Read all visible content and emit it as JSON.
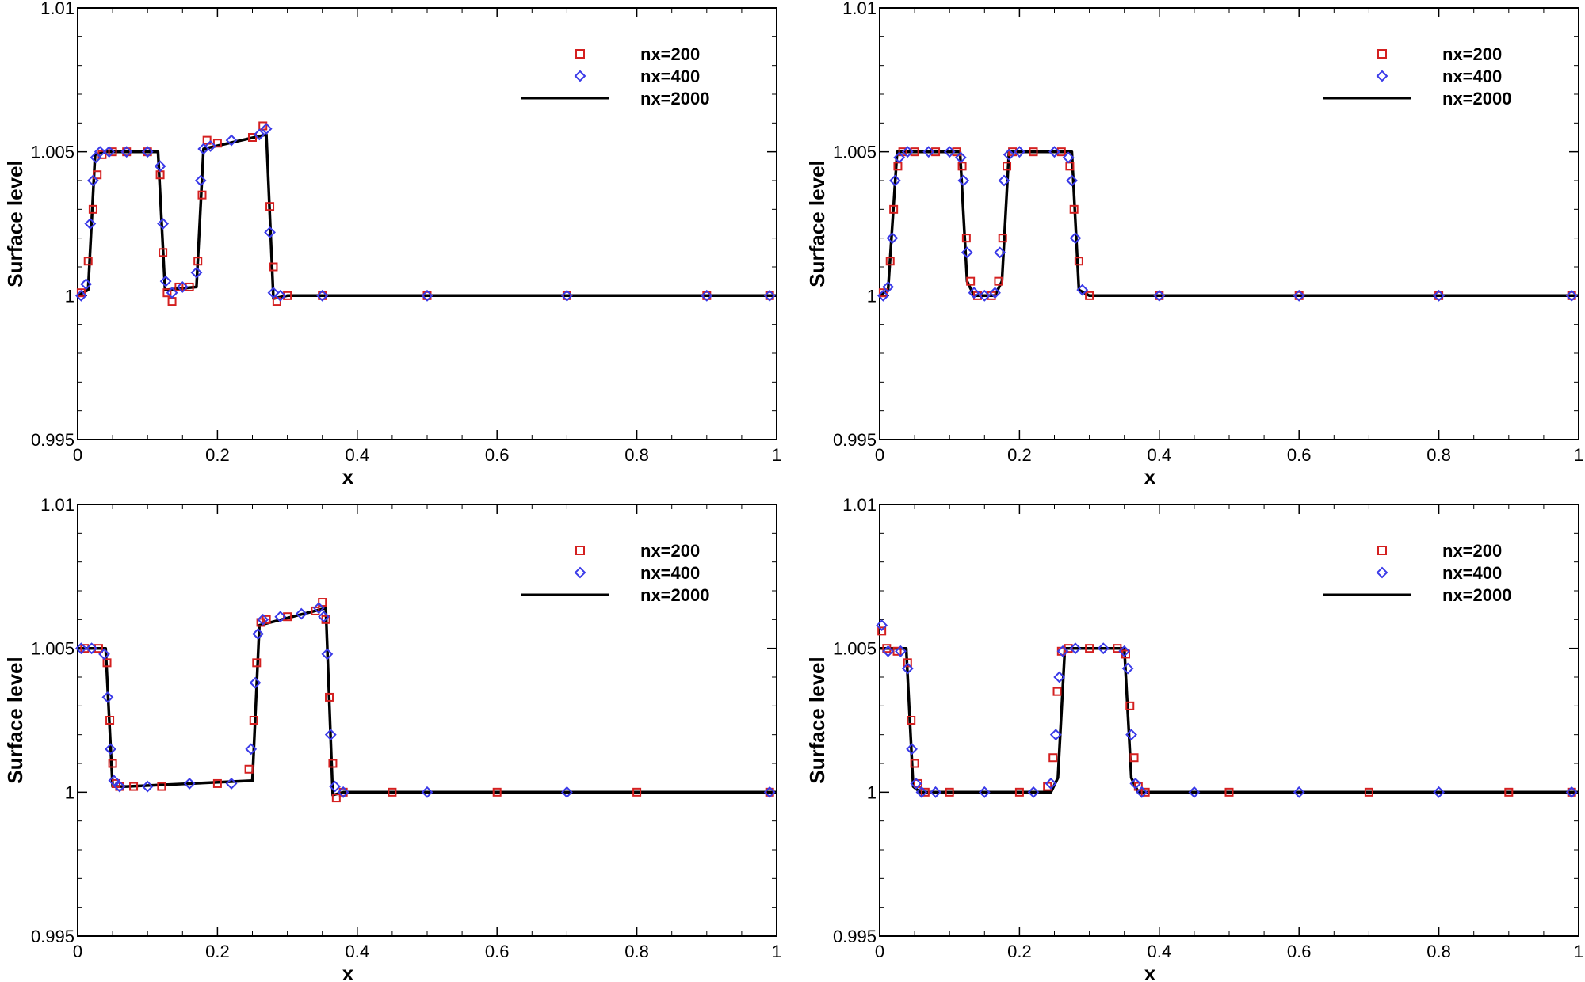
{
  "colors": {
    "nx200": "#d42020",
    "nx400": "#3a3ae8",
    "nx2000": "#000000",
    "axis": "#000000",
    "background": "#ffffff"
  },
  "chart_data": [
    {
      "type": "line",
      "xlabel": "x",
      "ylabel": "Surface level",
      "xlim": [
        0,
        1
      ],
      "ylim": [
        0.995,
        1.01
      ],
      "xticks": [
        "0",
        "0.2",
        "0.4",
        "0.6",
        "0.8",
        "1"
      ],
      "yticks": [
        "0.995",
        "1",
        "1.005",
        "1.01"
      ],
      "legend_position": "top-right",
      "legend": [
        "nx=200",
        "nx=400",
        "nx=2000"
      ],
      "profile": [
        [
          0,
          1.0
        ],
        [
          0.015,
          1.0002
        ],
        [
          0.025,
          1.0049
        ],
        [
          0.04,
          1.005
        ],
        [
          0.115,
          1.005
        ],
        [
          0.125,
          1.0002
        ],
        [
          0.17,
          1.0003
        ],
        [
          0.18,
          1.0051
        ],
        [
          0.27,
          1.0056
        ],
        [
          0.28,
          0.9999
        ],
        [
          0.3,
          1.0
        ],
        [
          1,
          1.0
        ]
      ],
      "series": [
        {
          "name": "nx=200",
          "marker": "square",
          "x": [
            0.005,
            0.015,
            0.022,
            0.028,
            0.035,
            0.05,
            0.07,
            0.1,
            0.118,
            0.122,
            0.128,
            0.135,
            0.145,
            0.16,
            0.172,
            0.178,
            0.185,
            0.2,
            0.25,
            0.265,
            0.275,
            0.28,
            0.285,
            0.3,
            0.35,
            0.5,
            0.7,
            0.9,
            0.99
          ],
          "y": [
            1.0001,
            1.0012,
            1.003,
            1.0042,
            1.0049,
            1.005,
            1.005,
            1.005,
            1.0042,
            1.0015,
            1.0001,
            0.9998,
            1.0003,
            1.0003,
            1.0012,
            1.0035,
            1.0054,
            1.0053,
            1.0055,
            1.0059,
            1.0031,
            1.001,
            0.9998,
            1.0,
            1.0,
            1.0,
            1.0,
            1.0,
            1.0
          ]
        },
        {
          "name": "nx=400",
          "marker": "diamond",
          "x": [
            0.005,
            0.012,
            0.018,
            0.022,
            0.026,
            0.032,
            0.045,
            0.07,
            0.1,
            0.118,
            0.122,
            0.126,
            0.135,
            0.15,
            0.17,
            0.176,
            0.18,
            0.19,
            0.22,
            0.26,
            0.27,
            0.275,
            0.28,
            0.29,
            0.35,
            0.5,
            0.7,
            0.9,
            0.99
          ],
          "y": [
            1.0,
            1.0004,
            1.0025,
            1.004,
            1.0048,
            1.005,
            1.005,
            1.005,
            1.005,
            1.0045,
            1.0025,
            1.0005,
            1.0001,
            1.0003,
            1.0008,
            1.004,
            1.0051,
            1.0052,
            1.0054,
            1.0056,
            1.0058,
            1.0022,
            1.0001,
            1.0,
            1.0,
            1.0,
            1.0,
            1.0,
            1.0
          ]
        }
      ]
    },
    {
      "type": "line",
      "xlabel": "x",
      "ylabel": "Surface level",
      "xlim": [
        0,
        1
      ],
      "ylim": [
        0.995,
        1.01
      ],
      "xticks": [
        "0",
        "0.2",
        "0.4",
        "0.6",
        "0.8",
        "1"
      ],
      "yticks": [
        "0.995",
        "1",
        "1.005",
        "1.01"
      ],
      "legend_position": "top-right",
      "legend": [
        "nx=200",
        "nx=400",
        "nx=2000"
      ],
      "profile": [
        [
          0,
          1.0
        ],
        [
          0.012,
          1.0002
        ],
        [
          0.025,
          1.005
        ],
        [
          0.115,
          1.005
        ],
        [
          0.125,
          1.0005
        ],
        [
          0.135,
          1.0
        ],
        [
          0.165,
          1.0
        ],
        [
          0.175,
          1.0005
        ],
        [
          0.185,
          1.005
        ],
        [
          0.275,
          1.005
        ],
        [
          0.285,
          1.0002
        ],
        [
          0.3,
          1.0
        ],
        [
          1,
          1.0
        ]
      ],
      "series": [
        {
          "name": "nx=200",
          "marker": "square",
          "x": [
            0.005,
            0.015,
            0.02,
            0.026,
            0.033,
            0.05,
            0.08,
            0.11,
            0.118,
            0.124,
            0.13,
            0.14,
            0.16,
            0.17,
            0.176,
            0.182,
            0.19,
            0.22,
            0.26,
            0.272,
            0.278,
            0.285,
            0.3,
            0.4,
            0.6,
            0.8,
            0.99
          ],
          "y": [
            1.0001,
            1.0012,
            1.003,
            1.0045,
            1.005,
            1.005,
            1.005,
            1.005,
            1.0045,
            1.002,
            1.0005,
            1.0,
            1.0,
            1.0005,
            1.002,
            1.0045,
            1.005,
            1.005,
            1.005,
            1.0045,
            1.003,
            1.0012,
            1.0,
            1.0,
            1.0,
            1.0,
            1.0
          ]
        },
        {
          "name": "nx=400",
          "marker": "diamond",
          "x": [
            0.005,
            0.012,
            0.018,
            0.022,
            0.028,
            0.04,
            0.07,
            0.1,
            0.116,
            0.12,
            0.125,
            0.135,
            0.15,
            0.165,
            0.172,
            0.178,
            0.185,
            0.2,
            0.25,
            0.27,
            0.275,
            0.28,
            0.29,
            0.4,
            0.6,
            0.8,
            0.99
          ],
          "y": [
            1.0,
            1.0003,
            1.002,
            1.004,
            1.0048,
            1.005,
            1.005,
            1.005,
            1.0048,
            1.004,
            1.0015,
            1.0001,
            1.0,
            1.0001,
            1.0015,
            1.004,
            1.0049,
            1.005,
            1.005,
            1.0048,
            1.004,
            1.002,
            1.0002,
            1.0,
            1.0,
            1.0,
            1.0
          ]
        }
      ]
    },
    {
      "type": "line",
      "xlabel": "x",
      "ylabel": "Surface level",
      "xlim": [
        0,
        1
      ],
      "ylim": [
        0.995,
        1.01
      ],
      "xticks": [
        "0",
        "0.2",
        "0.4",
        "0.6",
        "0.8",
        "1"
      ],
      "yticks": [
        "0.995",
        "1",
        "1.005",
        "1.01"
      ],
      "legend_position": "top-right",
      "legend": [
        "nx=200",
        "nx=400",
        "nx=2000"
      ],
      "profile": [
        [
          0,
          1.005
        ],
        [
          0.04,
          1.005
        ],
        [
          0.05,
          1.0002
        ],
        [
          0.07,
          1.0002
        ],
        [
          0.25,
          1.0004
        ],
        [
          0.26,
          1.0058
        ],
        [
          0.355,
          1.0064
        ],
        [
          0.365,
          0.9999
        ],
        [
          0.38,
          1.0
        ],
        [
          1,
          1.0
        ]
      ],
      "series": [
        {
          "name": "nx=200",
          "marker": "square",
          "x": [
            0.01,
            0.03,
            0.042,
            0.046,
            0.05,
            0.055,
            0.06,
            0.08,
            0.12,
            0.2,
            0.245,
            0.252,
            0.256,
            0.262,
            0.27,
            0.3,
            0.34,
            0.35,
            0.355,
            0.36,
            0.365,
            0.37,
            0.38,
            0.45,
            0.6,
            0.8,
            0.99
          ],
          "y": [
            1.005,
            1.005,
            1.0045,
            1.0025,
            1.001,
            1.0003,
            1.0002,
            1.0002,
            1.0002,
            1.0003,
            1.0008,
            1.0025,
            1.0045,
            1.0059,
            1.006,
            1.0061,
            1.0063,
            1.0066,
            1.006,
            1.0033,
            1.001,
            0.9998,
            1.0,
            1.0,
            1.0,
            1.0,
            1.0
          ]
        },
        {
          "name": "nx=400",
          "marker": "diamond",
          "x": [
            0.005,
            0.02,
            0.038,
            0.043,
            0.047,
            0.052,
            0.06,
            0.1,
            0.16,
            0.22,
            0.248,
            0.254,
            0.258,
            0.265,
            0.29,
            0.32,
            0.345,
            0.352,
            0.357,
            0.362,
            0.368,
            0.38,
            0.5,
            0.7,
            0.99
          ],
          "y": [
            1.005,
            1.005,
            1.0048,
            1.0033,
            1.0015,
            1.0004,
            1.0002,
            1.0002,
            1.0003,
            1.0003,
            1.0015,
            1.0038,
            1.0055,
            1.006,
            1.0061,
            1.0062,
            1.0064,
            1.0061,
            1.0048,
            1.002,
            1.0002,
            1.0,
            1.0,
            1.0,
            1.0
          ]
        }
      ]
    },
    {
      "type": "line",
      "xlabel": "x",
      "ylabel": "Surface level",
      "xlim": [
        0,
        1
      ],
      "ylim": [
        0.995,
        1.01
      ],
      "xticks": [
        "0",
        "0.2",
        "0.4",
        "0.6",
        "0.8",
        "1"
      ],
      "yticks": [
        "0.995",
        "1",
        "1.005",
        "1.01"
      ],
      "legend_position": "top-right",
      "legend": [
        "nx=200",
        "nx=400",
        "nx=2000"
      ],
      "profile": [
        [
          0,
          1.005
        ],
        [
          0.038,
          1.005
        ],
        [
          0.048,
          1.0002
        ],
        [
          0.058,
          1.0
        ],
        [
          0.245,
          1.0
        ],
        [
          0.255,
          1.0005
        ],
        [
          0.265,
          1.005
        ],
        [
          0.35,
          1.005
        ],
        [
          0.36,
          1.0005
        ],
        [
          0.37,
          1.0
        ],
        [
          1,
          1.0
        ]
      ],
      "series": [
        {
          "name": "nx=200",
          "marker": "square",
          "x": [
            0.003,
            0.01,
            0.025,
            0.04,
            0.045,
            0.05,
            0.055,
            0.065,
            0.1,
            0.2,
            0.24,
            0.248,
            0.254,
            0.26,
            0.27,
            0.3,
            0.34,
            0.352,
            0.358,
            0.364,
            0.37,
            0.38,
            0.5,
            0.7,
            0.9,
            0.99
          ],
          "y": [
            1.0056,
            1.005,
            1.0049,
            1.0045,
            1.0025,
            1.001,
            1.0003,
            1.0,
            1.0,
            1.0,
            1.0002,
            1.0012,
            1.0035,
            1.0049,
            1.005,
            1.005,
            1.005,
            1.0048,
            1.003,
            1.0012,
            1.0002,
            1.0,
            1.0,
            1.0,
            1.0,
            1.0
          ]
        },
        {
          "name": "nx=400",
          "marker": "diamond",
          "x": [
            0.003,
            0.012,
            0.03,
            0.04,
            0.046,
            0.052,
            0.06,
            0.08,
            0.15,
            0.22,
            0.245,
            0.252,
            0.257,
            0.262,
            0.28,
            0.32,
            0.35,
            0.355,
            0.36,
            0.366,
            0.375,
            0.45,
            0.6,
            0.8,
            0.99
          ],
          "y": [
            1.0058,
            1.0049,
            1.0049,
            1.0043,
            1.0015,
            1.0003,
            1.0,
            1.0,
            1.0,
            1.0,
            1.0003,
            1.002,
            1.004,
            1.0049,
            1.005,
            1.005,
            1.0049,
            1.0043,
            1.002,
            1.0003,
            1.0,
            1.0,
            1.0,
            1.0,
            1.0
          ]
        }
      ]
    }
  ]
}
